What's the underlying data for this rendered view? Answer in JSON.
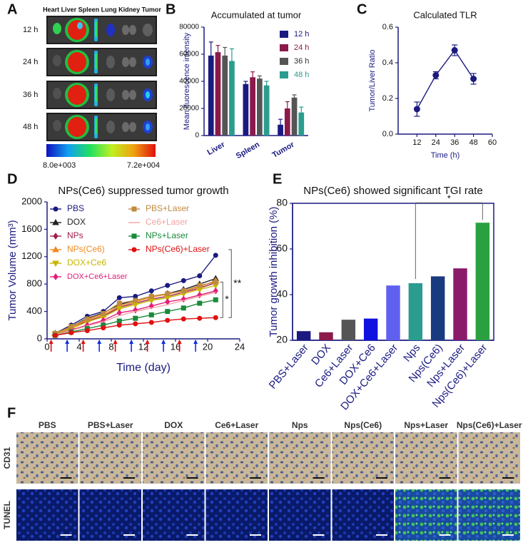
{
  "panel_labels": [
    "A",
    "B",
    "C",
    "D",
    "E",
    "F"
  ],
  "imaging": {
    "header": "Heart Liver Spleen Lung Kidney Tumor",
    "rows": [
      "12 h",
      "24 h",
      "36 h",
      "48 h"
    ],
    "colorbar_min": "8.0e+003",
    "colorbar_max": "7.2e+004"
  },
  "chart_data": [
    {
      "type": "bar",
      "title": "Accumulated at tumor",
      "y_label": "Mean fluorescence intensity",
      "categories": [
        "Liver",
        "Spleen",
        "Tumor"
      ],
      "series": [
        {
          "name": "12 h",
          "color": "#1a1a80",
          "values": [
            59000,
            38000,
            8000
          ],
          "errors": [
            10000,
            2000,
            4000
          ]
        },
        {
          "name": "24 h",
          "color": "#8b1a4a",
          "values": [
            61500,
            43000,
            20000
          ],
          "errors": [
            5000,
            4000,
            5000
          ]
        },
        {
          "name": "36 h",
          "color": "#555555",
          "values": [
            59000,
            42000,
            28000
          ],
          "errors": [
            6000,
            2000,
            2000
          ]
        },
        {
          "name": "48 h",
          "color": "#2a9d8f",
          "values": [
            55000,
            37000,
            17000
          ],
          "errors": [
            9000,
            3000,
            4000
          ]
        }
      ],
      "ylim": [
        0,
        80000
      ],
      "yticks": [
        0,
        20000,
        40000,
        60000,
        80000
      ],
      "legend": "upper right"
    },
    {
      "type": "line",
      "title": "Calculated TLR",
      "x_label": "Time (h)",
      "y_label": "Tumor/Liver Ratio",
      "x": [
        12,
        24,
        36,
        48
      ],
      "values": [
        0.14,
        0.33,
        0.47,
        0.31
      ],
      "errors": [
        0.04,
        0.02,
        0.03,
        0.03
      ],
      "color": "#1a1a80",
      "marker": "circle",
      "xlim": [
        0,
        60
      ],
      "xticks": [
        12,
        24,
        36,
        48,
        60
      ],
      "ylim": [
        0,
        0.6
      ],
      "yticks": [
        {
          "value": 0,
          "label": "0.0"
        },
        0.2,
        0.4,
        0.6
      ]
    },
    {
      "type": "line",
      "title": "NPs(Ce6) suppressed tumor growth",
      "x_label": "Time (day)",
      "y_label": "Tumor Volume (mm³)",
      "x": [
        1,
        3,
        5,
        7,
        9,
        11,
        13,
        15,
        17,
        19,
        21
      ],
      "series": [
        {
          "name": "PBS",
          "color": "#1a1a80",
          "marker": "circle",
          "values": [
            80,
            200,
            330,
            400,
            600,
            620,
            700,
            780,
            850,
            920,
            1220
          ]
        },
        {
          "name": "DOX",
          "color": "#222222",
          "marker": "triangle",
          "values": [
            80,
            180,
            300,
            380,
            500,
            560,
            620,
            660,
            720,
            800,
            880
          ]
        },
        {
          "name": "NPs",
          "color": "#a0204a",
          "marker": "diamond",
          "values": [
            70,
            160,
            260,
            330,
            460,
            520,
            580,
            620,
            680,
            740,
            820
          ]
        },
        {
          "name": "NPs(Ce6)",
          "color": "#f08a24",
          "marker": "triangle",
          "values": [
            70,
            160,
            280,
            350,
            480,
            540,
            610,
            650,
            700,
            760,
            850
          ]
        },
        {
          "name": "DOX+Ce6",
          "color": "#c8b400",
          "marker": "triangle-down",
          "values": [
            70,
            150,
            250,
            320,
            440,
            500,
            560,
            600,
            660,
            720,
            780
          ]
        },
        {
          "name": "DOX+Ce6+Laser",
          "color": "#e0207a",
          "marker": "diamond",
          "values": [
            60,
            130,
            200,
            270,
            380,
            420,
            480,
            540,
            580,
            640,
            700
          ]
        },
        {
          "name": "PBS+Laser",
          "color": "#c08a40",
          "marker": "square",
          "values": [
            80,
            180,
            290,
            370,
            520,
            560,
            620,
            660,
            700,
            780,
            830
          ]
        },
        {
          "name": "Ce6+Laser",
          "color": "#f4a0a0",
          "marker": "none",
          "values": [
            60,
            120,
            190,
            250,
            340,
            400,
            450,
            500,
            560,
            620,
            680
          ]
        },
        {
          "name": "NPs+Laser",
          "color": "#1a8a3a",
          "marker": "square",
          "values": [
            50,
            100,
            150,
            200,
            260,
            300,
            350,
            400,
            450,
            520,
            570
          ]
        },
        {
          "name": "NPs(Ce6)+Laser",
          "color": "#e01010",
          "marker": "circle",
          "values": [
            50,
            90,
            120,
            160,
            200,
            220,
            240,
            270,
            290,
            300,
            310
          ]
        }
      ],
      "arrows": [
        {
          "x": 0.5,
          "color": "#e01010"
        },
        {
          "x": 2.5,
          "color": "#1030e0"
        },
        {
          "x": 4.5,
          "color": "#e01010"
        },
        {
          "x": 6.5,
          "color": "#1030e0"
        },
        {
          "x": 8.5,
          "color": "#e01010"
        },
        {
          "x": 10.5,
          "color": "#1030e0"
        },
        {
          "x": 12.5,
          "color": "#e01010"
        },
        {
          "x": 14.5,
          "color": "#1030e0"
        },
        {
          "x": 16.5,
          "color": "#e01010"
        },
        {
          "x": 18.5,
          "color": "#1030e0"
        }
      ],
      "annotations": [
        "*",
        "**"
      ],
      "xlim": [
        0,
        24
      ],
      "xticks": [
        0,
        4,
        8,
        12,
        16,
        20,
        24
      ],
      "ylim": [
        0,
        2000
      ],
      "yticks": [
        0,
        400,
        800,
        1200,
        1600,
        2000
      ],
      "legend": "upper left"
    },
    {
      "type": "bar",
      "title": "NPs(Ce6) showed significant TGI rate",
      "y_label": "Tumor growth inhibition (%)",
      "categories": [
        "PBS+Laser",
        "DOX",
        "Ce6+Laser",
        "DOX+Ce6",
        "DOX+Ce6+Laser",
        "Nps",
        "Nps(Ce6)",
        "Nps+Laser",
        "Nps(Ce6)+Laser"
      ],
      "values": [
        24,
        23.5,
        29,
        29.5,
        44,
        45,
        48,
        51.5,
        71.5
      ],
      "colors": [
        "#1a1a80",
        "#8b1a4a",
        "#555555",
        "#1010e0",
        "#6060f0",
        "#2a9d8f",
        "#1a3a80",
        "#8b1a6a",
        "#2aa040"
      ],
      "annotations": [
        "*"
      ],
      "ylim": [
        20,
        80
      ],
      "yticks": [
        20,
        40,
        60,
        80
      ]
    }
  ],
  "histology": {
    "columns": [
      "PBS",
      "PBS+Laser",
      "DOX",
      "Ce6+Laser",
      "Nps",
      "Nps(Ce6)",
      "Nps+Laser",
      "Nps(Ce6)+Laser"
    ],
    "rows": [
      "CD31",
      "TUNEL"
    ]
  }
}
